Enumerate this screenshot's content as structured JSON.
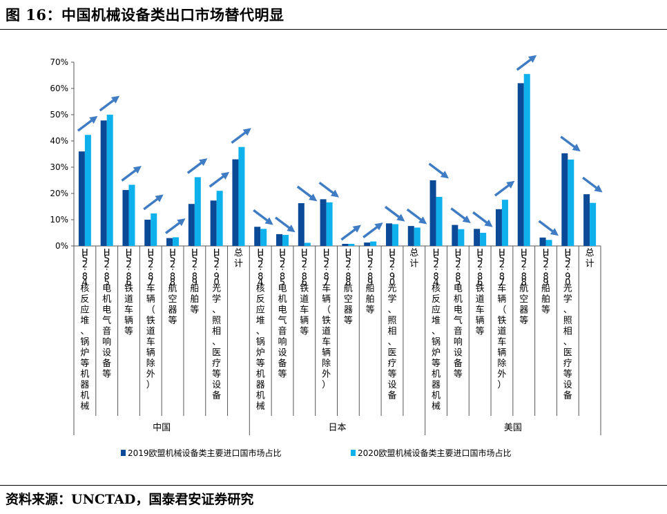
{
  "figure": {
    "title": "图 16：中国机械设备类出口市场替代明显",
    "source": "资料来源：UNCTAD，国泰君安证券研究"
  },
  "chart_data": {
    "type": "bar",
    "groups": [
      "中国",
      "日本",
      "美国"
    ],
    "categories": [
      "HS2:84核反应堆、锅炉等机器机械",
      "HS2:85电机电气音响设备等",
      "HS2:86铁道车辆等",
      "HS2:87车辆（铁道车辆除外）",
      "HS2:88航空器等",
      "HS2:89船舶等",
      "HS2:90光学、照相、医疗等设备",
      "总计"
    ],
    "series": [
      {
        "name": "2019欧盟机械设备类主要进口国市场占比",
        "color": "#0b4a96",
        "values": [
          [
            36,
            47.8,
            21.3,
            10,
            3,
            16,
            17.3,
            33
          ],
          [
            7.3,
            4.5,
            16.3,
            17.8,
            0.8,
            1.3,
            8.6,
            7.6
          ],
          [
            25,
            8,
            6.5,
            14,
            62,
            3.2,
            35.3,
            19.7
          ]
        ]
      },
      {
        "name": "2020欧盟机械设备类主要进口国市场占比",
        "color": "#0eb1ec",
        "values": [
          [
            42.3,
            50,
            23.3,
            12.4,
            3.3,
            26.2,
            21,
            37.7
          ],
          [
            6.5,
            4.2,
            1.2,
            16.6,
            0.8,
            1.7,
            8.3,
            7
          ],
          [
            18.7,
            6.4,
            5,
            17.6,
            65.5,
            2.3,
            32.9,
            16.4
          ]
        ]
      }
    ],
    "trend_arrows": [
      [
        "up",
        "up",
        "up",
        "up",
        "up",
        "up",
        "up",
        "up"
      ],
      [
        "down",
        "down",
        "down",
        "down",
        "up",
        "up",
        "down",
        "down"
      ],
      [
        "down",
        "down",
        "down",
        "up",
        "up",
        "down",
        "down",
        "down"
      ]
    ],
    "arrow_color": "#3f7cc4",
    "ylim": [
      0,
      70
    ],
    "yticks": [
      0,
      10,
      20,
      30,
      40,
      50,
      60,
      70
    ],
    "ytick_labels": [
      "0%",
      "10%",
      "20%",
      "30%",
      "40%",
      "50%",
      "60%",
      "70%"
    ],
    "legend_position": "bottom",
    "grid": false
  }
}
